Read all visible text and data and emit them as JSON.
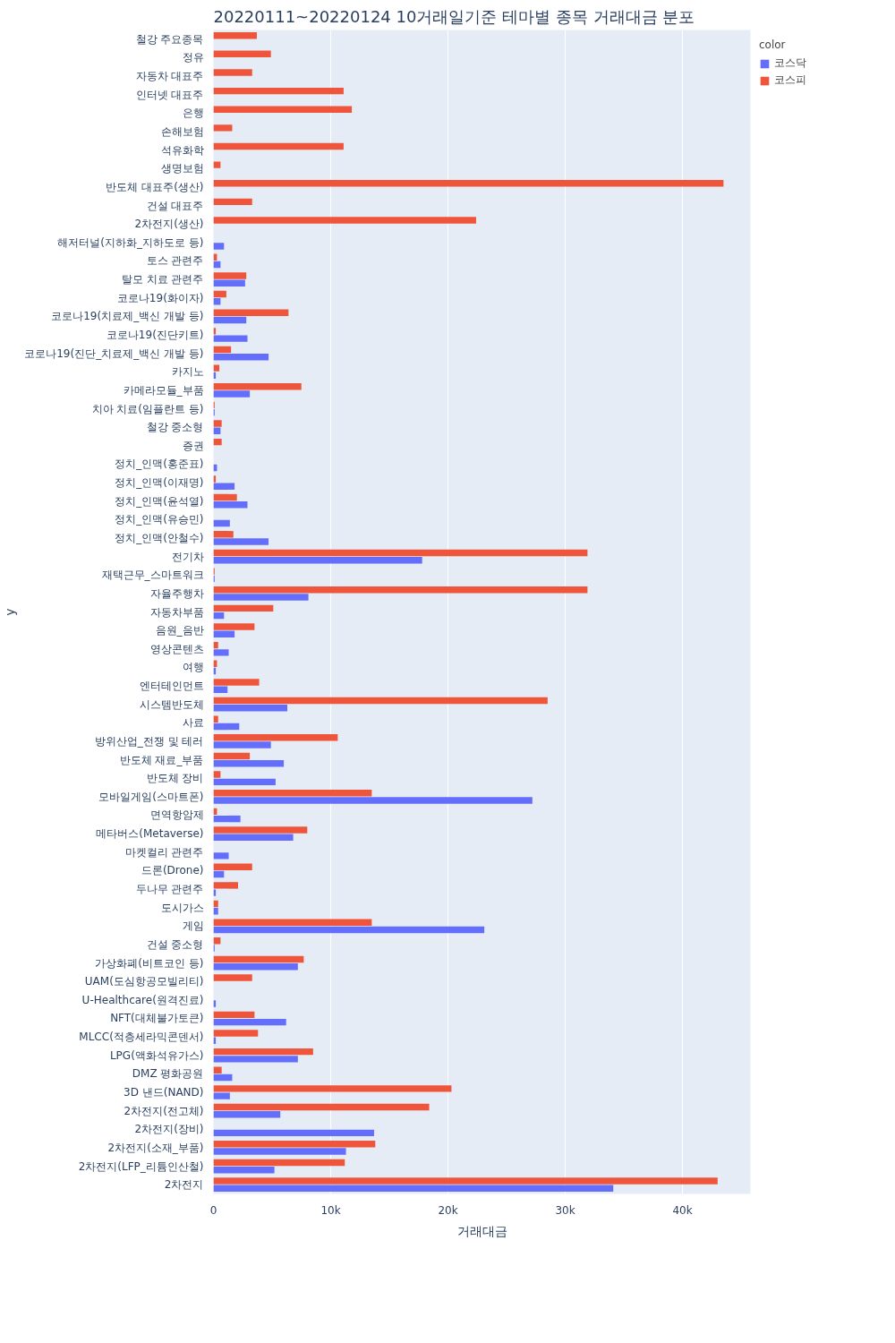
{
  "chart_data": {
    "type": "bar",
    "orientation": "horizontal",
    "title": "20220111~20220124 10거래일기준 테마별 종목 거래대금 분포",
    "xlabel": "거래대금",
    "ylabel": "y",
    "legend_title": "color",
    "legend": "top right",
    "grid": "x",
    "categories": [
      "철강 주요종목",
      "정유",
      "자동차 대표주",
      "인터넷 대표주",
      "은행",
      "손해보험",
      "석유화학",
      "생명보험",
      "반도체 대표주(생산)",
      "건설 대표주",
      "2차전지(생산)",
      "해저터널(지하화_지하도로 등)",
      "토스 관련주",
      "탈모 치료 관련주",
      "코로나19(화이자)",
      "코로나19(치료제_백신 개발 등)",
      "코로나19(진단키트)",
      "코로나19(진단_치료제_백신 개발 등)",
      "카지노",
      "카메라모듈_부품",
      "치아 치료(임플란트 등)",
      "철강 중소형",
      "증권",
      "정치_인맥(홍준표)",
      "정치_인맥(이재명)",
      "정치_인맥(윤석열)",
      "정치_인맥(유승민)",
      "정치_인맥(안철수)",
      "전기차",
      "재택근무_스마트워크",
      "자율주행차",
      "자동차부품",
      "음원_음반",
      "영상콘텐츠",
      "여행",
      "엔터테인먼트",
      "시스템반도체",
      "사료",
      "방위산업_전쟁 및 테러",
      "반도체 재료_부품",
      "반도체 장비",
      "모바일게임(스마트폰)",
      "면역항암제",
      "메타버스(Metaverse)",
      "마켓컬리 관련주",
      "드론(Drone)",
      "두나무 관련주",
      "도시가스",
      "게임",
      "건설 중소형",
      "가상화폐(비트코인 등)",
      "UAM(도심항공모빌리티)",
      "U-Healthcare(원격진료)",
      "NFT(대체불가토큰)",
      "MLCC(적층세라믹콘덴서)",
      "LPG(액화석유가스)",
      "DMZ 평화공원",
      "3D 낸드(NAND)",
      "2차전지(전고체)",
      "2차전지(장비)",
      "2차전지(소재_부품)",
      "2차전지(LFP_리튬인산철)",
      "2차전지"
    ],
    "series": [
      {
        "name": "코스닥",
        "color": "#636efa",
        "values": [
          null,
          null,
          null,
          null,
          null,
          null,
          null,
          null,
          null,
          null,
          null,
          900,
          600,
          2700,
          600,
          2800,
          2900,
          4700,
          200,
          3100,
          100,
          600,
          null,
          300,
          1800,
          2900,
          1400,
          4700,
          17800,
          100,
          8100,
          900,
          1800,
          1300,
          200,
          1200,
          6300,
          2200,
          4900,
          6000,
          5300,
          27200,
          2300,
          6800,
          1300,
          900,
          200,
          400,
          23100,
          100,
          7200,
          null,
          200,
          6200,
          200,
          7200,
          1600,
          1400,
          5700,
          13700,
          11300,
          5200,
          34100
        ]
      },
      {
        "name": "코스피",
        "color": "#ef553b",
        "values": [
          3700,
          4900,
          3300,
          11100,
          11800,
          1600,
          11100,
          600,
          43500,
          3300,
          22400,
          null,
          300,
          2800,
          1100,
          6400,
          200,
          1500,
          500,
          7500,
          100,
          700,
          700,
          null,
          200,
          2000,
          null,
          1700,
          31900,
          100,
          31900,
          5100,
          3500,
          400,
          300,
          3900,
          28500,
          400,
          10600,
          3100,
          600,
          13500,
          300,
          8000,
          null,
          3300,
          2100,
          400,
          13500,
          600,
          7700,
          3300,
          null,
          3500,
          3800,
          8500,
          700,
          20300,
          18400,
          null,
          13800,
          11200,
          43000
        ]
      }
    ],
    "xlim": [
      0,
      45800
    ],
    "xticks": [
      0,
      {
        "value": 10000,
        "label": "10k"
      },
      {
        "value": 20000,
        "label": "20k"
      },
      {
        "value": 30000,
        "label": "30k"
      },
      {
        "value": 40000,
        "label": "40k"
      }
    ]
  }
}
